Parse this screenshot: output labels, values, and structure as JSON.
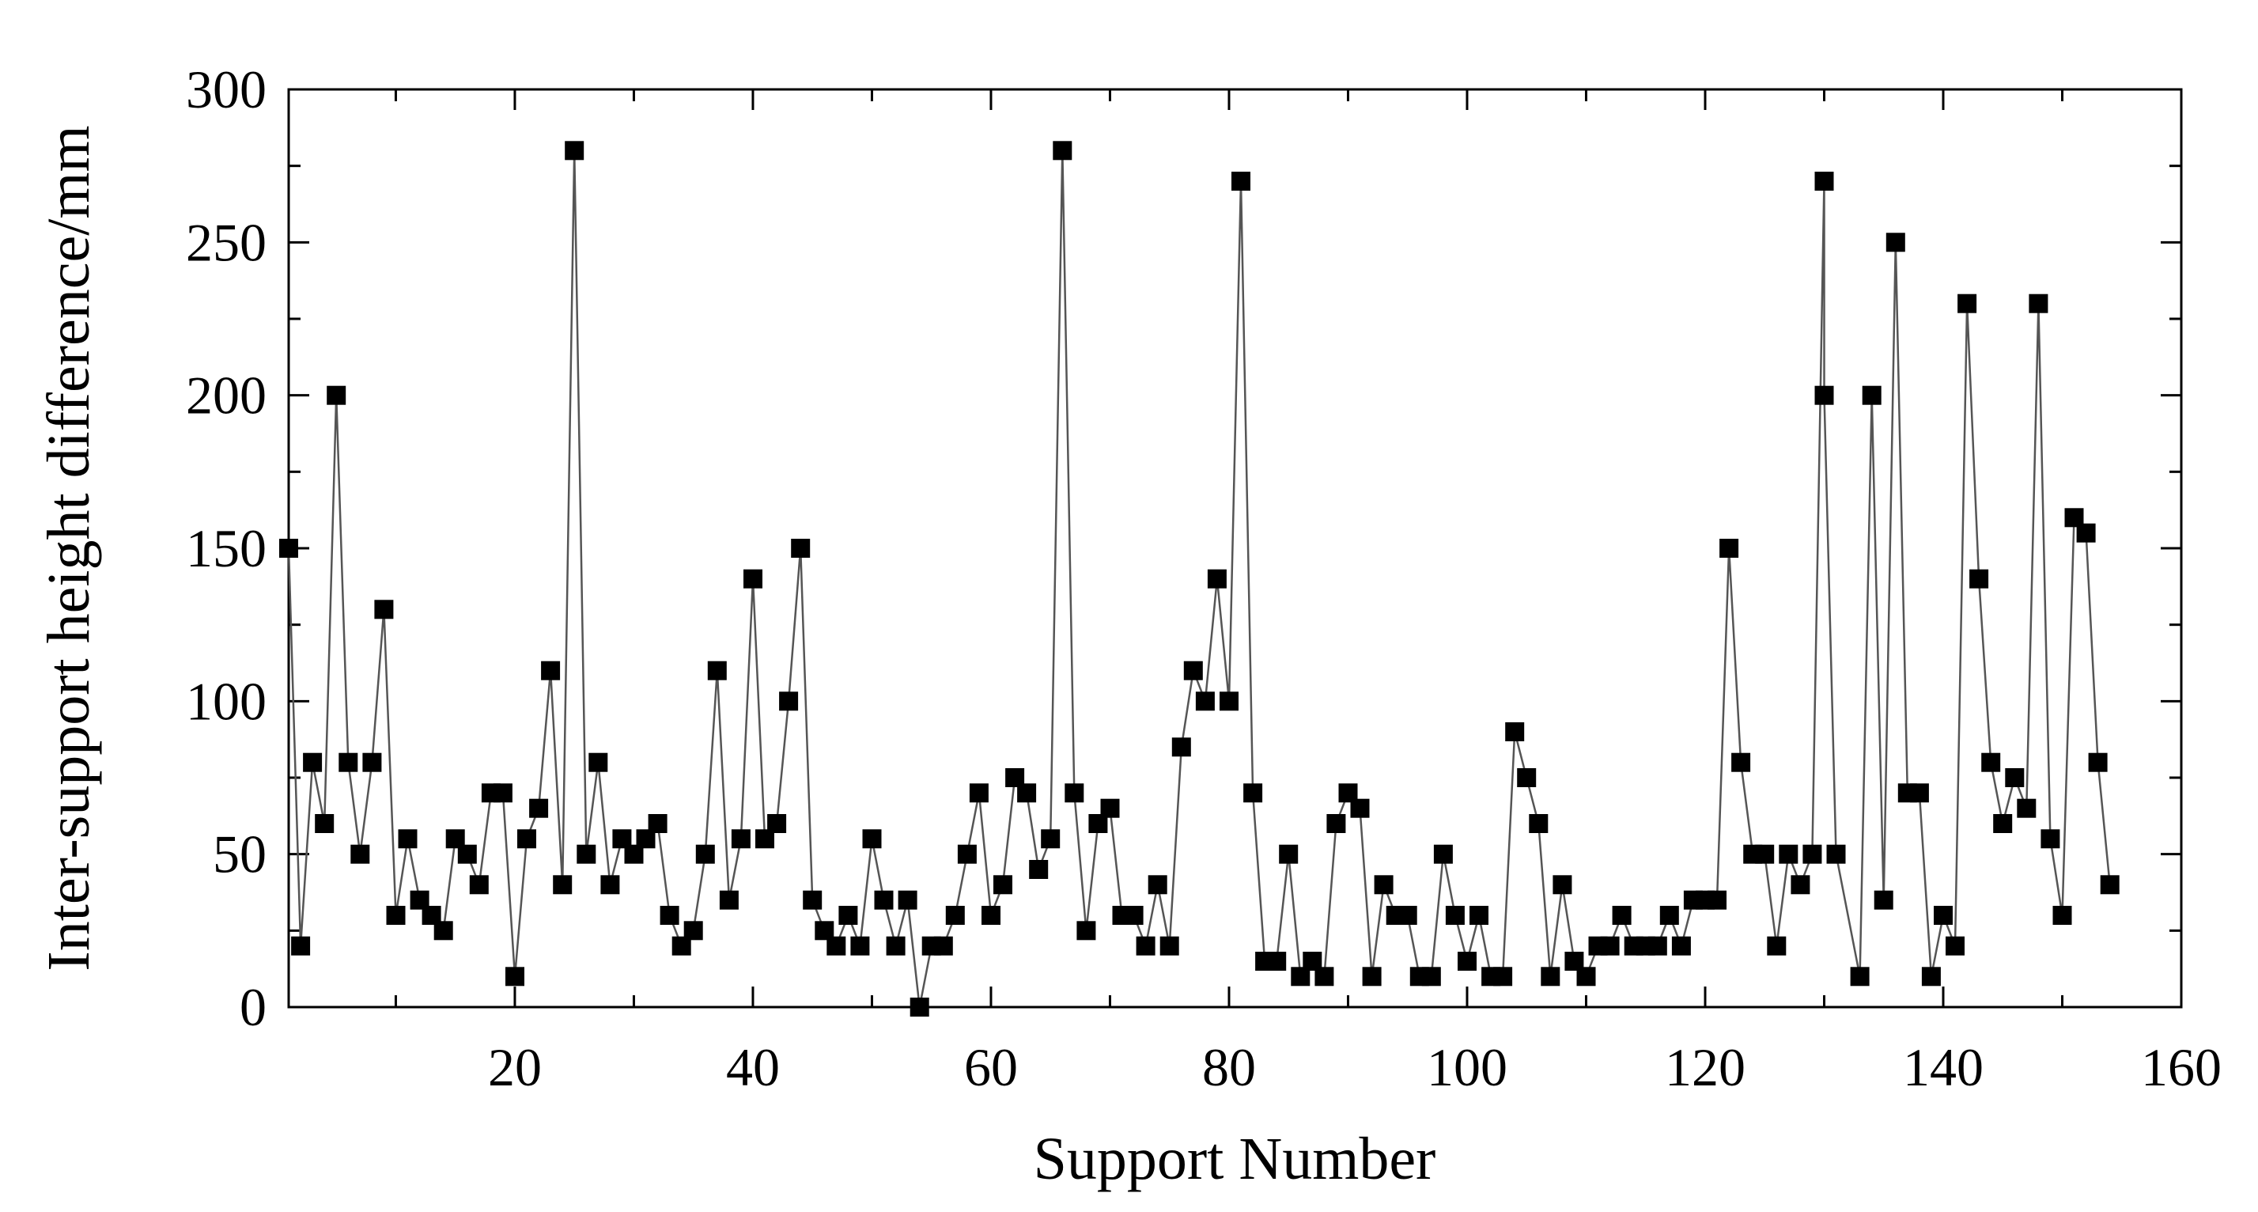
{
  "chart_data": {
    "type": "line",
    "xlabel": "Support Number",
    "ylabel": "Inter-support height difference/mm",
    "xlim": [
      1,
      160
    ],
    "ylim": [
      0,
      300
    ],
    "x_ticks": [
      20,
      40,
      60,
      80,
      100,
      120,
      140,
      160
    ],
    "y_ticks": [
      0,
      50,
      100,
      150,
      200,
      250,
      300
    ],
    "grid": false,
    "legend": "none",
    "marker": "square",
    "line_color": "#555555",
    "marker_color": "#000000",
    "x": [
      1,
      2,
      3,
      4,
      5,
      6,
      7,
      8,
      9,
      10,
      11,
      12,
      13,
      14,
      15,
      16,
      17,
      18,
      19,
      20,
      21,
      22,
      23,
      24,
      25,
      26,
      27,
      28,
      29,
      30,
      31,
      32,
      33,
      34,
      35,
      36,
      37,
      38,
      39,
      40,
      41,
      42,
      43,
      44,
      45,
      46,
      47,
      48,
      49,
      50,
      51,
      52,
      53,
      54,
      55,
      56,
      57,
      58,
      59,
      60,
      61,
      62,
      63,
      64,
      65,
      66,
      67,
      68,
      69,
      70,
      71,
      72,
      73,
      74,
      75,
      76,
      77,
      78,
      79,
      80,
      81,
      82,
      83,
      84,
      85,
      86,
      87,
      88,
      89,
      90,
      91,
      92,
      93,
      94,
      95,
      96,
      97,
      98,
      99,
      100,
      101,
      102,
      103,
      104,
      105,
      106,
      107,
      108,
      109,
      110,
      111,
      112,
      113,
      114,
      115,
      116,
      117,
      118,
      119,
      120,
      121,
      122,
      123,
      124,
      125,
      126,
      127,
      128,
      129,
      130,
      130,
      131,
      133,
      134,
      135,
      136,
      137,
      138,
      139,
      140,
      141,
      142,
      143,
      144,
      145,
      146,
      147,
      148,
      149,
      150,
      151,
      152,
      153,
      154
    ],
    "series": [
      {
        "values": [
          150,
          20,
          80,
          60,
          200,
          80,
          50,
          80,
          130,
          30,
          55,
          35,
          30,
          25,
          55,
          50,
          40,
          70,
          70,
          10,
          55,
          65,
          110,
          40,
          280,
          50,
          80,
          40,
          55,
          50,
          55,
          60,
          30,
          20,
          25,
          50,
          110,
          35,
          55,
          140,
          55,
          60,
          100,
          150,
          35,
          25,
          20,
          30,
          20,
          55,
          35,
          20,
          35,
          0,
          20,
          20,
          30,
          50,
          70,
          30,
          40,
          75,
          70,
          45,
          55,
          280,
          70,
          25,
          60,
          65,
          30,
          30,
          20,
          40,
          20,
          85,
          110,
          100,
          140,
          100,
          270,
          70,
          15,
          15,
          50,
          10,
          15,
          10,
          60,
          70,
          65,
          10,
          40,
          30,
          30,
          10,
          10,
          50,
          30,
          15,
          30,
          10,
          10,
          90,
          75,
          60,
          10,
          40,
          15,
          10,
          20,
          20,
          30,
          20,
          20,
          20,
          30,
          20,
          35,
          35,
          35,
          150,
          80,
          50,
          50,
          20,
          50,
          40,
          50,
          270,
          200,
          50,
          10,
          200,
          35,
          250,
          70,
          70,
          10,
          30,
          20,
          230,
          140,
          80,
          60,
          75,
          65,
          230,
          55,
          30,
          160,
          155,
          80,
          40
        ]
      }
    ]
  }
}
